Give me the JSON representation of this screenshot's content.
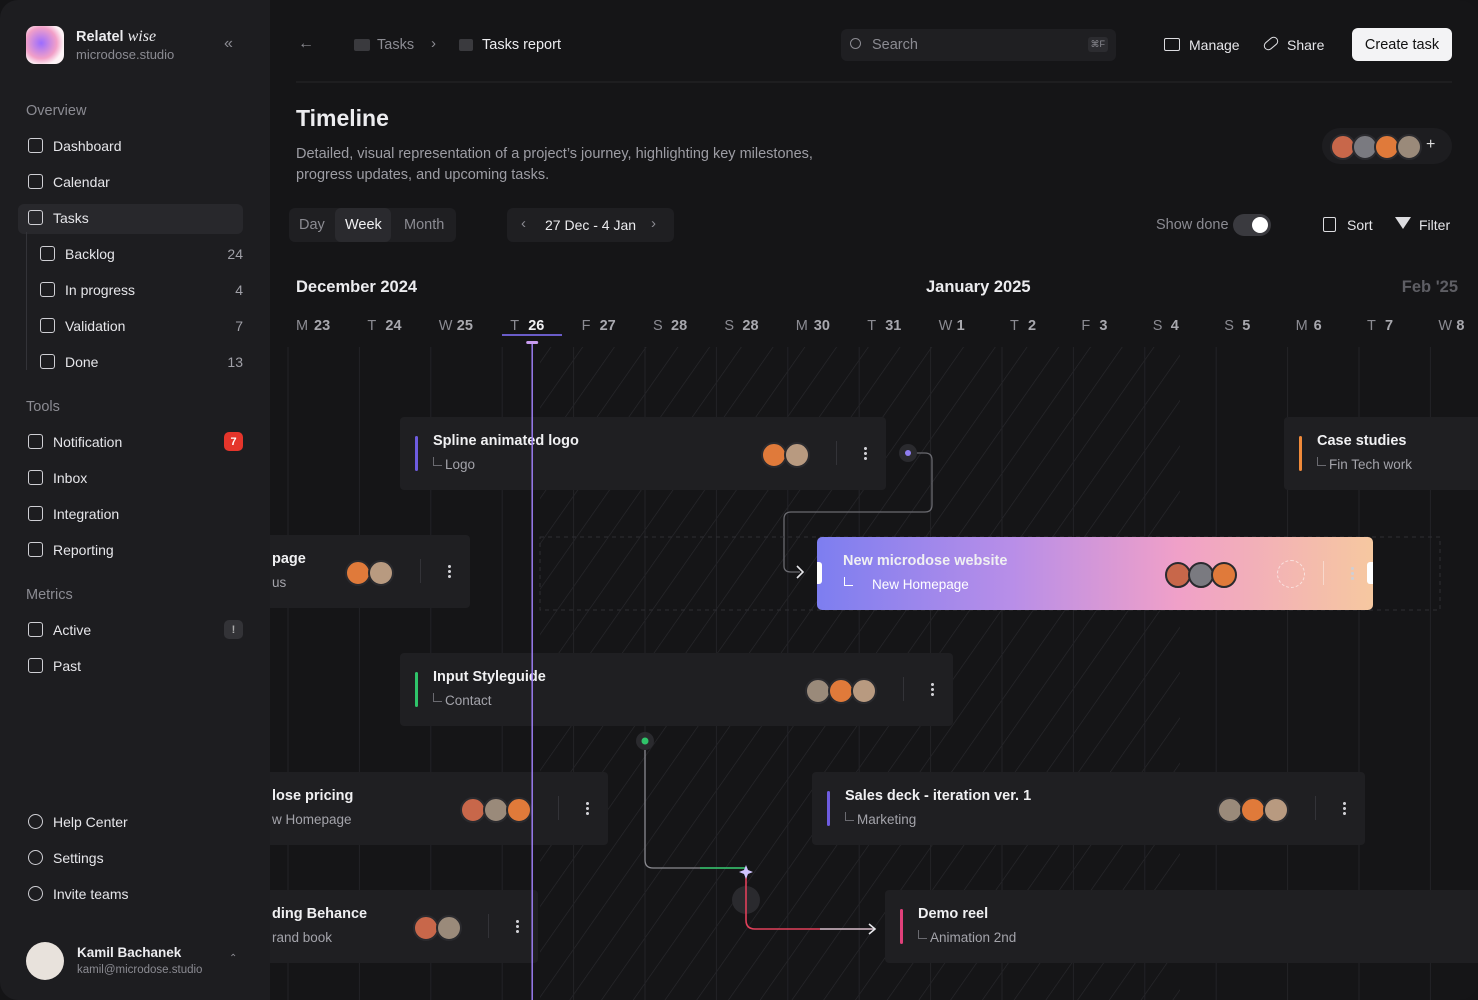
{
  "app": {
    "name": "Relatel",
    "name_accent": "wise",
    "workspace": "microdose.studio"
  },
  "sidebar": {
    "groups": [
      {
        "title": "Overview",
        "items": [
          {
            "label": "Dashboard"
          },
          {
            "label": "Calendar"
          },
          {
            "label": "Tasks",
            "children": [
              {
                "label": "Backlog",
                "count": 24
              },
              {
                "label": "In progress",
                "count": 4
              },
              {
                "label": "Validation",
                "count": 7
              },
              {
                "label": "Done",
                "count": 13
              }
            ]
          }
        ]
      },
      {
        "title": "Tools",
        "items": [
          {
            "label": "Notification",
            "badge": 7
          },
          {
            "label": "Inbox"
          },
          {
            "label": "Integration"
          },
          {
            "label": "Reporting"
          }
        ]
      },
      {
        "title": "Metrics",
        "items": [
          {
            "label": "Active",
            "badge": "!"
          },
          {
            "label": "Past"
          }
        ]
      }
    ],
    "footer": [
      {
        "label": "Help Center"
      },
      {
        "label": "Settings"
      },
      {
        "label": "Invite teams"
      }
    ],
    "user": {
      "name": "Kamil Bachanek",
      "email": "kamil@microdose.studio"
    }
  },
  "header": {
    "breadcrumb": [
      "Tasks",
      "Tasks report"
    ],
    "search": {
      "placeholder": "Search",
      "shortcut": "⌘F"
    },
    "actions": [
      "Manage",
      "Share"
    ],
    "primary_action": "Create task"
  },
  "page": {
    "title": "Timeline",
    "description": "Detailed, visual representation of a project’s journey, highlighting key milestones, progress updates, and upcoming tasks.",
    "views": [
      "Day",
      "Week",
      "Month"
    ],
    "active_view": "Week",
    "date_range": "27 Dec - 4 Jan",
    "show_done": "Show done",
    "sort": "Sort",
    "filter": "Filter"
  },
  "timeline": {
    "months": [
      "December 2024",
      "January 2025",
      "Feb '25"
    ],
    "days": [
      [
        "M",
        "23"
      ],
      [
        "T",
        "24"
      ],
      [
        "W",
        "25"
      ],
      [
        "T",
        "26"
      ],
      [
        "F",
        "27"
      ],
      [
        "S",
        "28"
      ],
      [
        "S",
        "28"
      ],
      [
        "M",
        "30"
      ],
      [
        "T",
        "31"
      ],
      [
        "W",
        "1"
      ],
      [
        "T",
        "2"
      ],
      [
        "F",
        "3"
      ],
      [
        "S",
        "4"
      ],
      [
        "S",
        "5"
      ],
      [
        "M",
        "6"
      ],
      [
        "T",
        "7"
      ],
      [
        "W",
        "8"
      ]
    ],
    "today_index": 3,
    "tasks": [
      {
        "title": "Spline animated logo",
        "subtitle": "Logo",
        "color": "#6e5ce0"
      },
      {
        "title": "Case studies",
        "subtitle": "Fin Tech work",
        "color": "#f08a3a"
      },
      {
        "title": "page",
        "subtitle": "us",
        "color": "#4a90e2"
      },
      {
        "title": "New microdose website",
        "subtitle": "New Homepage",
        "color": "#ffffff",
        "highlight": true
      },
      {
        "title": "Input Styleguide",
        "subtitle": "Contact",
        "color": "#2fc46a"
      },
      {
        "title": "lose pricing",
        "subtitle": "w Homepage",
        "color": "#e0a030"
      },
      {
        "title": "Sales deck - iteration ver. 1",
        "subtitle": "Marketing",
        "color": "#6e5ce0"
      },
      {
        "title": "ding Behance",
        "subtitle": "rand book",
        "color": "#3fa0e0"
      },
      {
        "title": "Demo reel",
        "subtitle": "Animation 2nd",
        "color": "#e0407a"
      }
    ]
  }
}
